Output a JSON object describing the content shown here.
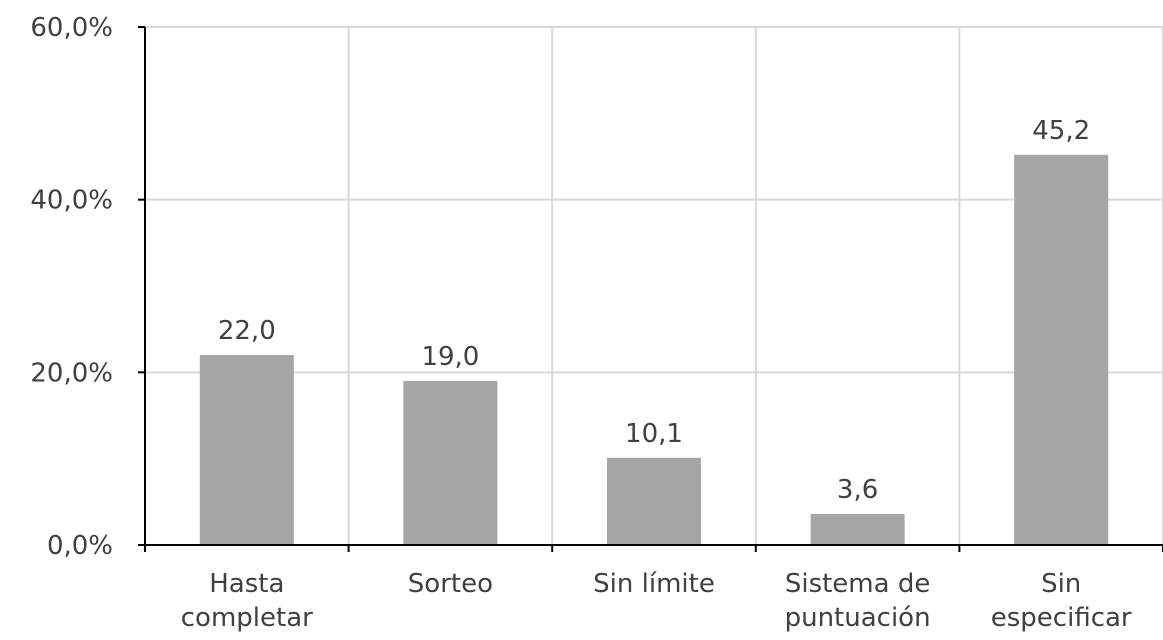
{
  "chart_data": {
    "type": "bar",
    "categories": [
      [
        "Hasta",
        "completar"
      ],
      [
        "Sorteo"
      ],
      [
        "Sin límite"
      ],
      [
        "Sistema de",
        "puntuación"
      ],
      [
        "Sin",
        "especificar"
      ]
    ],
    "values": [
      22.0,
      19.0,
      10.1,
      3.6,
      45.2
    ],
    "data_labels": [
      "22,0",
      "19,0",
      "10,1",
      "3,6",
      "45,2"
    ],
    "y_ticks": [
      {
        "value": 0,
        "label": "0,0%"
      },
      {
        "value": 20,
        "label": "20,0%"
      },
      {
        "value": 40,
        "label": "40,0%"
      },
      {
        "value": 60,
        "label": "60,0%"
      }
    ],
    "ylim": [
      0,
      60
    ],
    "bar_color": "#a5a5a5",
    "grid_color": "#d9d9d9",
    "axis_color": "#000000",
    "text_color": "#404040",
    "grid": "vertical",
    "legend": "none"
  }
}
